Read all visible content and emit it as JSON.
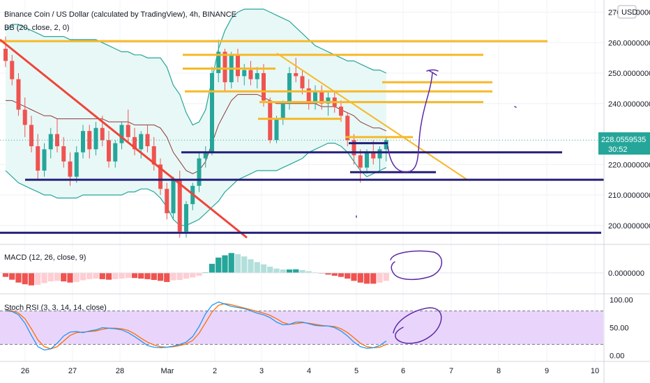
{
  "header": {
    "title": "Binance Coin / US Dollar (calculated by TradingView), 4h, BINANCE",
    "bb_label": "BB (20, close, 2, 0)",
    "currency": "USD"
  },
  "indicators": {
    "macd_label": "MACD (12, 26, close, 9)",
    "stoch_label": "Stoch RSI (3, 3, 14, 14, close)"
  },
  "current_price": {
    "value": "228.0559535",
    "countdown": "30:52"
  },
  "colors": {
    "up": "#26a69a",
    "down": "#ef5350",
    "bb": "#26a69a",
    "bb_fill": "#e6f7f5",
    "basis": "#8b3a3a",
    "orange": "#f7b829",
    "navy": "#241f7a",
    "red_trend": "#f04438",
    "pen": "#5b2aa6",
    "stoch_fill": "#e9d5fb",
    "stoch_k": "#2196f3",
    "stoch_d": "#ff6d00",
    "macd_pos": "#26a69a",
    "macd_neg": "#ef5350"
  },
  "chart_data": [
    {
      "type": "candlestick",
      "title": "Binance Coin / US Dollar (calculated by TradingView), 4h, BINANCE",
      "ylim": [
        194,
        274
      ],
      "y_ticks": [
        {
          "v": 270,
          "label": "270.0000000"
        },
        {
          "v": 260,
          "label": "260.0000000"
        },
        {
          "v": 250,
          "label": "250.0000000"
        },
        {
          "v": 240,
          "label": "240.0000000"
        },
        {
          "v": 220,
          "label": "220.0000000"
        },
        {
          "v": 210,
          "label": "210.0000000"
        },
        {
          "v": 200,
          "label": "200.0000000"
        }
      ],
      "x_ticks": [
        "26",
        "27",
        "28",
        "Mar",
        "2",
        "3",
        "4",
        "5",
        "6",
        "7",
        "8",
        "9",
        "10"
      ],
      "candles": [
        [
          258,
          262,
          252,
          254
        ],
        [
          254,
          256,
          246,
          248
        ],
        [
          248,
          250,
          236,
          238
        ],
        [
          238,
          242,
          229,
          233
        ],
        [
          233,
          236,
          224,
          226
        ],
        [
          226,
          230,
          215,
          218
        ],
        [
          218,
          227,
          216,
          225
        ],
        [
          225,
          232,
          222,
          230
        ],
        [
          230,
          235,
          224,
          226
        ],
        [
          226,
          229,
          219,
          221
        ],
        [
          221,
          224,
          213,
          216
        ],
        [
          216,
          226,
          214,
          224
        ],
        [
          224,
          233,
          222,
          231
        ],
        [
          231,
          233,
          222,
          225
        ],
        [
          225,
          234,
          223,
          232
        ],
        [
          232,
          236,
          226,
          228
        ],
        [
          228,
          231,
          219,
          221
        ],
        [
          221,
          228,
          219,
          227
        ],
        [
          227,
          234,
          225,
          233
        ],
        [
          233,
          238,
          227,
          229
        ],
        [
          229,
          232,
          223,
          225
        ],
        [
          225,
          231,
          222,
          230
        ],
        [
          230,
          233,
          224,
          226
        ],
        [
          226,
          229,
          218,
          220
        ],
        [
          220,
          222,
          210,
          212
        ],
        [
          212,
          214,
          202,
          204
        ],
        [
          204,
          216,
          202,
          215
        ],
        [
          215,
          218,
          196,
          198
        ],
        [
          198,
          208,
          196,
          207
        ],
        [
          207,
          214,
          205,
          213
        ],
        [
          213,
          224,
          211,
          222
        ],
        [
          222,
          226,
          219,
          224
        ],
        [
          224,
          252,
          223,
          250
        ],
        [
          250,
          261,
          247,
          257
        ],
        [
          257,
          258,
          244,
          247
        ],
        [
          247,
          257,
          245,
          256
        ],
        [
          256,
          258,
          247,
          249
        ],
        [
          249,
          253,
          246,
          251
        ],
        [
          251,
          254,
          246,
          248
        ],
        [
          248,
          252,
          245,
          250
        ],
        [
          250,
          253,
          239,
          241
        ],
        [
          241,
          242,
          227,
          228
        ],
        [
          228,
          236,
          227,
          235
        ],
        [
          235,
          241,
          233,
          240
        ],
        [
          240,
          252,
          238,
          250
        ],
        [
          250,
          255,
          247,
          249
        ],
        [
          249,
          251,
          243,
          245
        ],
        [
          245,
          248,
          238,
          240
        ],
        [
          240,
          246,
          238,
          244
        ],
        [
          244,
          246,
          238,
          240
        ],
        [
          240,
          244,
          236,
          242
        ],
        [
          242,
          244,
          237,
          239
        ],
        [
          239,
          241,
          234,
          236
        ],
        [
          236,
          237,
          226,
          228
        ],
        [
          228,
          230,
          220,
          223
        ],
        [
          223,
          225,
          214,
          219
        ],
        [
          219,
          225,
          217,
          224
        ],
        [
          224,
          228,
          220,
          222
        ],
        [
          222,
          226,
          218,
          225
        ],
        [
          225,
          229,
          221,
          228
        ]
      ],
      "bb_upper": [
        264,
        266,
        266,
        265,
        264,
        263,
        262,
        262,
        262,
        262,
        261,
        261,
        261,
        261,
        261,
        260,
        259,
        258,
        257,
        257,
        256,
        256,
        255,
        255,
        255,
        252,
        246,
        243,
        237,
        233,
        234,
        238,
        248,
        258,
        264,
        268,
        270,
        271,
        271,
        271,
        271,
        270,
        269,
        268,
        267,
        265,
        263,
        261,
        259,
        258,
        257,
        256,
        255,
        254,
        254,
        253,
        252,
        251,
        251,
        250
      ],
      "bb_lower": [
        218,
        216,
        214,
        213,
        212,
        211,
        210,
        210,
        209,
        209,
        209,
        209,
        210,
        210,
        210,
        210,
        210,
        210,
        210,
        211,
        211,
        212,
        212,
        211,
        209,
        206,
        202,
        200,
        200,
        201,
        202,
        204,
        206,
        208,
        211,
        213,
        215,
        216,
        217,
        218,
        218,
        218,
        218,
        219,
        220,
        221,
        222,
        224,
        225,
        226,
        227,
        227,
        226,
        224,
        221,
        218,
        216,
        217,
        218,
        219
      ],
      "bb_basis": [
        241,
        241,
        240,
        239,
        238,
        237,
        236,
        236,
        235,
        235,
        235,
        235,
        235,
        235,
        235,
        235,
        234,
        234,
        234,
        234,
        233,
        233,
        233,
        233,
        232,
        229,
        224,
        221,
        218,
        217,
        218,
        221,
        227,
        233,
        237,
        241,
        243,
        243,
        243,
        243,
        242,
        241,
        240,
        240,
        240,
        240,
        240,
        240,
        240,
        239,
        239,
        239,
        238,
        237,
        236,
        234,
        233,
        232,
        232,
        231
      ]
    },
    {
      "type": "bar",
      "title": "MACD (12, 26, close, 9)",
      "y_ticks": [
        {
          "v": 0,
          "label": "0.0000000"
        }
      ],
      "ylim": [
        -1.6,
        2.2
      ],
      "values": [
        -0.35,
        -0.6,
        -0.85,
        -1.0,
        -1.1,
        -1.05,
        -0.9,
        -0.75,
        -0.7,
        -0.75,
        -0.85,
        -0.8,
        -0.65,
        -0.55,
        -0.5,
        -0.55,
        -0.6,
        -0.55,
        -0.5,
        -0.45,
        -0.45,
        -0.5,
        -0.55,
        -0.62,
        -0.7,
        -0.8,
        -0.65,
        -0.62,
        -0.5,
        -0.4,
        -0.25,
        0.05,
        0.8,
        1.35,
        1.55,
        1.75,
        1.65,
        1.45,
        1.2,
        0.95,
        0.75,
        0.55,
        0.38,
        0.3,
        0.3,
        0.32,
        0.25,
        0.15,
        0.05,
        -0.05,
        -0.15,
        -0.25,
        -0.35,
        -0.5,
        -0.7,
        -0.85,
        -0.95,
        -0.95,
        -0.85,
        -0.7
      ]
    },
    {
      "type": "line",
      "title": "Stoch RSI (3, 3, 14, 14, close)",
      "ylim": [
        -8,
        108
      ],
      "y_ticks": [
        {
          "v": 100,
          "label": "100.00"
        },
        {
          "v": 50,
          "label": "50.00"
        },
        {
          "v": 0,
          "label": "0.00"
        }
      ],
      "band": [
        20,
        80
      ],
      "series": [
        {
          "key": "k",
          "values": [
            80,
            79,
            73,
            58,
            36,
            16,
            10,
            12,
            22,
            35,
            42,
            43,
            41,
            44,
            46,
            50,
            49,
            48,
            46,
            41,
            34,
            26,
            18,
            15,
            14,
            15,
            17,
            20,
            24,
            34,
            52,
            75,
            90,
            96,
            92,
            88,
            86,
            84,
            80,
            76,
            73,
            68,
            60,
            55,
            56,
            60,
            60,
            57,
            54,
            53,
            53,
            50,
            44,
            35,
            24,
            16,
            13,
            14,
            18,
            26
          ]
        },
        {
          "key": "d",
          "values": [
            82,
            80,
            76,
            66,
            48,
            28,
            16,
            12,
            16,
            26,
            36,
            41,
            42,
            43,
            44,
            47,
            49,
            49,
            48,
            45,
            39,
            31,
            24,
            19,
            16,
            15,
            16,
            18,
            21,
            27,
            40,
            59,
            78,
            90,
            93,
            91,
            88,
            85,
            82,
            79,
            76,
            72,
            66,
            59,
            56,
            57,
            59,
            58,
            56,
            54,
            53,
            52,
            48,
            41,
            32,
            22,
            16,
            14,
            15,
            20
          ]
        }
      ]
    }
  ]
}
